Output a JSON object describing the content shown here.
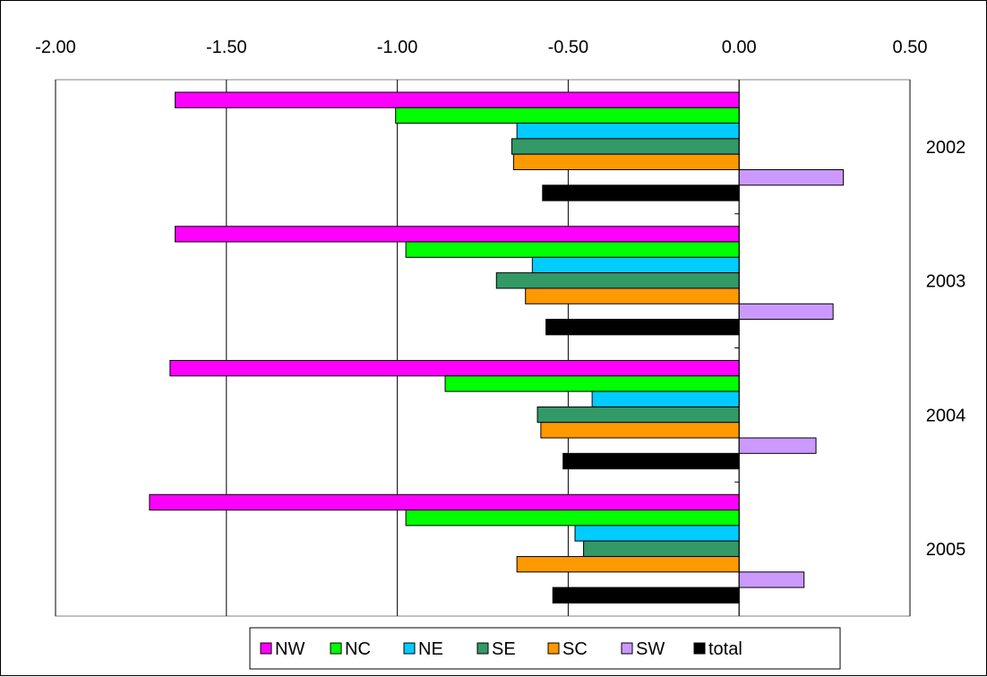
{
  "chart_data": {
    "type": "bar",
    "orientation": "horizontal",
    "x_axis_position": "top",
    "grid": true,
    "legend_position": "bottom",
    "categories": [
      "2002",
      "2003",
      "2004",
      "2005"
    ],
    "xlim": [
      -2.0,
      0.5
    ],
    "x_ticks": [
      "-2.00",
      "-1.50",
      "-1.00",
      "-0.50",
      "0.00",
      "0.50"
    ],
    "x_tick_values": [
      -2.0,
      -1.5,
      -1.0,
      -0.5,
      0.0,
      0.5
    ],
    "title": "",
    "xlabel": "",
    "ylabel": "",
    "series": [
      {
        "name": "NW",
        "color": "#FF00FF",
        "values": [
          -1.65,
          -1.65,
          -1.665,
          -1.725
        ]
      },
      {
        "name": "NC",
        "color": "#00FF00",
        "values": [
          -1.005,
          -0.975,
          -0.86,
          -0.975
        ]
      },
      {
        "name": "NE",
        "color": "#00CCFF",
        "values": [
          -0.65,
          -0.605,
          -0.43,
          -0.48
        ]
      },
      {
        "name": "SE",
        "color": "#339966",
        "values": [
          -0.665,
          -0.71,
          -0.59,
          -0.455
        ]
      },
      {
        "name": "SC",
        "color": "#FF9900",
        "values": [
          -0.66,
          -0.625,
          -0.58,
          -0.65
        ]
      },
      {
        "name": "SW",
        "color": "#CC99FF",
        "values": [
          0.305,
          0.275,
          0.225,
          0.19
        ]
      },
      {
        "name": "total",
        "color": "#000000",
        "values": [
          -0.575,
          -0.565,
          -0.515,
          -0.545
        ]
      }
    ]
  }
}
